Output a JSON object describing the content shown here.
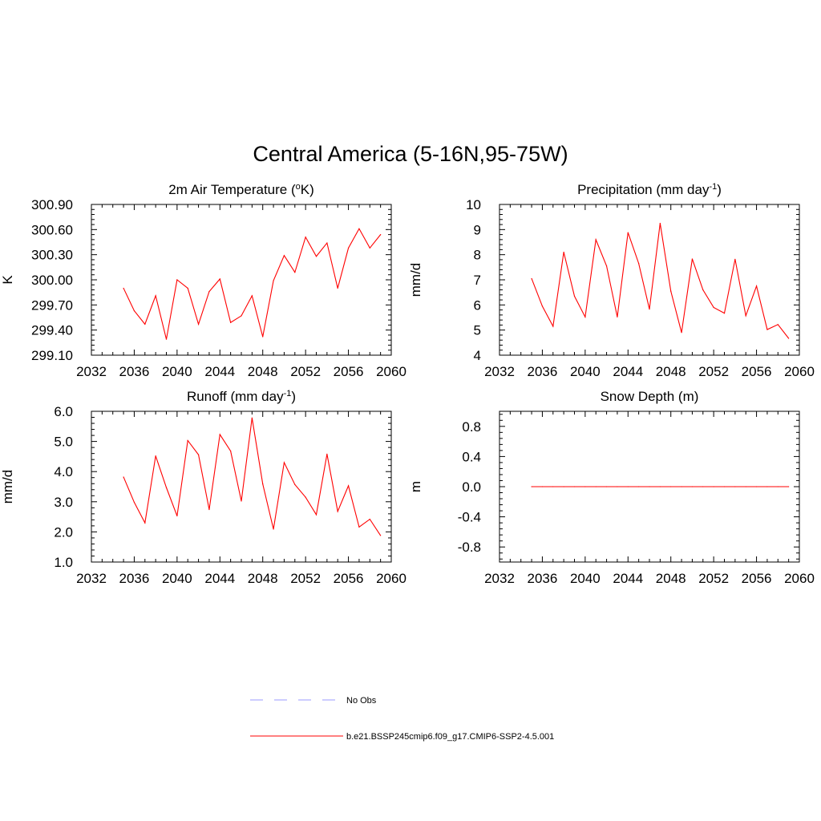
{
  "figure": {
    "title": "Central America (5-16N,95-75W)"
  },
  "legend": {
    "items": [
      {
        "label": "No Obs",
        "color": "#9999ff",
        "dash": true
      },
      {
        "label": "b.e21.BSSP245cmip6.f09_g17.CMIP6-SSP2-4.5.001",
        "color": "#ff0000",
        "dash": false
      }
    ]
  },
  "chart_data": [
    {
      "type": "line",
      "title": "2m Air Temperature (ºK)",
      "title_parts": [
        "2m Air Temperature (",
        "o",
        "K)"
      ],
      "title_sup": "o",
      "ylabel": "K",
      "xlim": [
        2032,
        2060
      ],
      "ylim": [
        299.1,
        300.9
      ],
      "xticks": [
        "2032",
        "2036",
        "2040",
        "2044",
        "2048",
        "2052",
        "2056",
        "2060"
      ],
      "yticks": [
        "299.10",
        "299.40",
        "299.70",
        "300.00",
        "300.30",
        "300.60",
        "300.90"
      ],
      "series": [
        {
          "color": "#ff0000",
          "x": [
            2035,
            2036,
            2037,
            2038,
            2039,
            2040,
            2041,
            2042,
            2043,
            2044,
            2045,
            2046,
            2047,
            2048,
            2049,
            2050,
            2051,
            2052,
            2053,
            2054,
            2055,
            2056,
            2057,
            2058,
            2059
          ],
          "values": [
            299.9,
            299.63,
            299.47,
            299.81,
            299.29,
            300.0,
            299.9,
            299.47,
            299.86,
            300.01,
            299.49,
            299.57,
            299.81,
            299.32,
            299.99,
            300.29,
            300.09,
            300.51,
            300.28,
            300.44,
            299.9,
            300.38,
            300.61,
            300.38,
            300.54
          ]
        }
      ]
    },
    {
      "type": "line",
      "title": "Precipitation (mm day-1)",
      "title_parts": [
        "Precipitation (mm day",
        "-1",
        ")"
      ],
      "ylabel": "mm/d",
      "xlim": [
        2032,
        2060
      ],
      "ylim": [
        4,
        10
      ],
      "xticks": [
        "2032",
        "2036",
        "2040",
        "2044",
        "2048",
        "2052",
        "2056",
        "2060"
      ],
      "yticks": [
        "4",
        "5",
        "6",
        "7",
        "8",
        "9",
        "10"
      ],
      "series": [
        {
          "color": "#ff0000",
          "x": [
            2035,
            2036,
            2037,
            2038,
            2039,
            2040,
            2041,
            2042,
            2043,
            2044,
            2045,
            2046,
            2047,
            2048,
            2049,
            2050,
            2051,
            2052,
            2053,
            2054,
            2055,
            2056,
            2057,
            2058,
            2059
          ],
          "values": [
            7.05,
            5.95,
            5.15,
            8.1,
            6.35,
            5.52,
            8.6,
            7.55,
            5.52,
            8.88,
            7.65,
            5.83,
            9.25,
            6.55,
            4.9,
            7.83,
            6.6,
            5.9,
            5.67,
            7.82,
            5.57,
            6.75,
            5.02,
            5.22,
            4.67
          ]
        }
      ]
    },
    {
      "type": "line",
      "title": "Runoff (mm day-1)",
      "title_parts": [
        "Runoff (mm day",
        "-1",
        ")"
      ],
      "ylabel": "mm/d",
      "xlim": [
        2032,
        2060
      ],
      "ylim": [
        1.0,
        6.0
      ],
      "xticks": [
        "2032",
        "2036",
        "2040",
        "2044",
        "2048",
        "2052",
        "2056",
        "2060"
      ],
      "yticks": [
        "1.0",
        "2.0",
        "3.0",
        "4.0",
        "5.0",
        "6.0"
      ],
      "series": [
        {
          "color": "#ff0000",
          "x": [
            2035,
            2036,
            2037,
            2038,
            2039,
            2040,
            2041,
            2042,
            2043,
            2044,
            2045,
            2046,
            2047,
            2048,
            2049,
            2050,
            2051,
            2052,
            2053,
            2054,
            2055,
            2056,
            2057,
            2058,
            2059
          ],
          "values": [
            3.82,
            2.98,
            2.3,
            4.52,
            3.47,
            2.53,
            5.03,
            4.56,
            2.74,
            5.23,
            4.68,
            3.02,
            5.78,
            3.59,
            2.09,
            4.3,
            3.57,
            3.15,
            2.57,
            4.58,
            2.68,
            3.53,
            2.16,
            2.42,
            1.88
          ]
        }
      ]
    },
    {
      "type": "line",
      "title": "Snow Depth (m)",
      "title_parts": [
        "Snow Depth (m)",
        "",
        ""
      ],
      "ylabel": "m",
      "xlim": [
        2032,
        2060
      ],
      "ylim": [
        -1.0,
        1.0
      ],
      "xticks": [
        "2032",
        "2036",
        "2040",
        "2044",
        "2048",
        "2052",
        "2056",
        "2060"
      ],
      "yticks": [
        "-0.8",
        "-0.4",
        "0.0",
        "0.4",
        "0.8"
      ],
      "series": [
        {
          "color": "#ff0000",
          "x": [
            2035,
            2036,
            2037,
            2038,
            2039,
            2040,
            2041,
            2042,
            2043,
            2044,
            2045,
            2046,
            2047,
            2048,
            2049,
            2050,
            2051,
            2052,
            2053,
            2054,
            2055,
            2056,
            2057,
            2058,
            2059
          ],
          "values": [
            0,
            0,
            0,
            0,
            0,
            0,
            0,
            0,
            0,
            0,
            0,
            0,
            0,
            0,
            0,
            0,
            0,
            0,
            0,
            0,
            0,
            0,
            0,
            0,
            0
          ]
        }
      ]
    }
  ]
}
